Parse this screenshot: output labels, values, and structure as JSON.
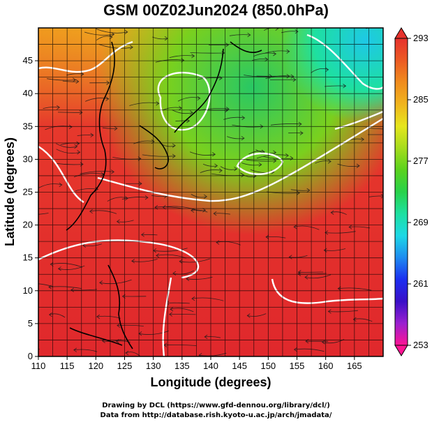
{
  "title": "GSM 00Z02Jun2024 (850.0hPa)",
  "x_axis": {
    "label": "Longitude (degrees)",
    "min": 110,
    "max": 170,
    "ticks": [
      "110",
      "115",
      "120",
      "125",
      "130",
      "135",
      "140",
      "145",
      "150",
      "155",
      "160",
      "165"
    ]
  },
  "y_axis": {
    "label": "Latitude  (degrees)",
    "min": 0,
    "max": 50,
    "ticks": [
      "0",
      "5",
      "10",
      "15",
      "20",
      "25",
      "30",
      "35",
      "40",
      "45"
    ]
  },
  "colorbar": {
    "min": 253,
    "max": 293,
    "labels": [
      "293",
      "285",
      "277",
      "269",
      "261",
      "253"
    ],
    "colors": [
      "#ff1493",
      "#9b20d0",
      "#3a10c8",
      "#1c2ef0",
      "#1e8cf0",
      "#1ed8e6",
      "#1ee0a0",
      "#28d24a",
      "#5ad21e",
      "#a6dc1e",
      "#e6e61e",
      "#f0b41e",
      "#f08c1e",
      "#ec5a24",
      "#e6322d"
    ]
  },
  "credits": {
    "line1": "Drawing by DCL (https://www.gfd-dennou.org/library/dcl/)",
    "line2": "Data from http://database.rish.kyoto-u.ac.jp/arch/jmadata/"
  }
}
